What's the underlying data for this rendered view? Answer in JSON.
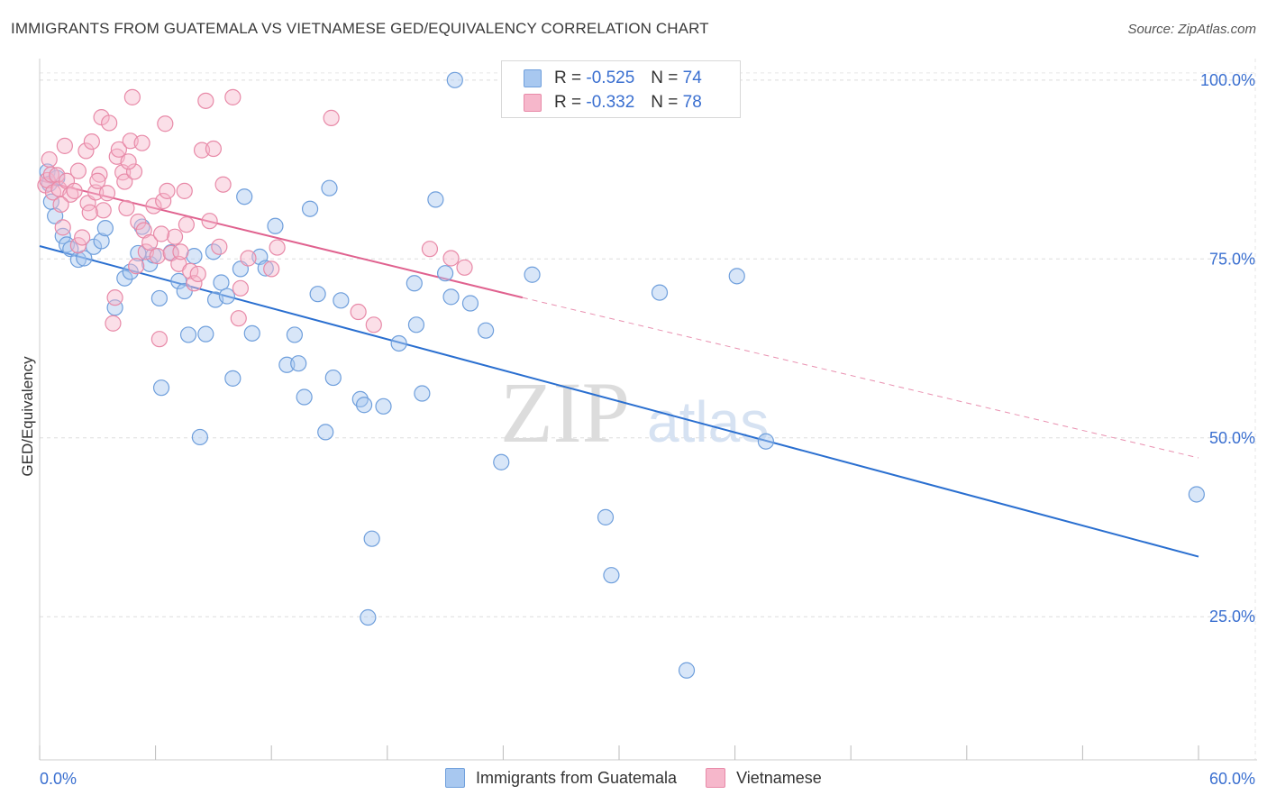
{
  "title": "IMMIGRANTS FROM GUATEMALA VS VIETNAMESE GED/EQUIVALENCY CORRELATION CHART",
  "source": "Source: ZipAtlas.com",
  "watermark": {
    "zip": "ZIP",
    "atlas": "atlas"
  },
  "colors": {
    "blue_fill": "#a8c8f0",
    "blue_stroke": "#6f9fdc",
    "blue_line": "#2a6fd0",
    "pink_fill": "#f6b7cb",
    "pink_stroke": "#e88aa8",
    "pink_line": "#e0628f",
    "tick_label": "#3a6fd0",
    "grid": "#dddddd"
  },
  "legend": {
    "rows": [
      {
        "r_label": "R = ",
        "r_value": "-0.525",
        "n_label": "N = ",
        "n_value": "74",
        "color": "#a8c8f0",
        "border": "#6f9fdc"
      },
      {
        "r_label": "R = ",
        "r_value": "-0.332",
        "n_label": "N = ",
        "n_value": "78",
        "color": "#f6b7cb",
        "border": "#e88aa8"
      }
    ]
  },
  "bottom_legend": [
    {
      "label": "Immigrants from Guatemala",
      "color": "#a8c8f0",
      "border": "#6f9fdc"
    },
    {
      "label": "Vietnamese",
      "color": "#f6b7cb",
      "border": "#e88aa8"
    }
  ],
  "chart_data": {
    "type": "scatter",
    "title": "IMMIGRANTS FROM GUATEMALA VS VIETNAMESE GED/EQUIVALENCY CORRELATION CHART",
    "xlabel": "",
    "ylabel": "GED/Equivalency",
    "xlim": [
      0,
      60
    ],
    "ylim": [
      5,
      103
    ],
    "x_tick_labels": [
      "0.0%",
      "60.0%"
    ],
    "y_ticks": [
      25,
      50,
      75,
      100
    ],
    "y_tick_labels": [
      "25.0%",
      "50.0%",
      "75.0%",
      "100.0%"
    ],
    "grid": true,
    "series": [
      {
        "name": "Immigrants from Guatemala",
        "color": "#a8c8f0",
        "trend": {
          "x": [
            0,
            60
          ],
          "y": [
            76.8,
            33.4
          ],
          "dashed_extension": false
        },
        "points": [
          [
            0.4,
            87.2
          ],
          [
            0.5,
            85.5
          ],
          [
            0.6,
            83.0
          ],
          [
            0.8,
            81.0
          ],
          [
            1.2,
            78.2
          ],
          [
            1.4,
            77.0
          ],
          [
            1.6,
            76.4
          ],
          [
            2.0,
            74.9
          ],
          [
            2.3,
            75.1
          ],
          [
            2.8,
            76.7
          ],
          [
            3.2,
            77.5
          ],
          [
            3.4,
            79.3
          ],
          [
            3.9,
            68.2
          ],
          [
            4.4,
            72.3
          ],
          [
            4.7,
            73.2
          ],
          [
            5.1,
            75.8
          ],
          [
            5.3,
            79.5
          ],
          [
            5.7,
            74.3
          ],
          [
            5.9,
            75.5
          ],
          [
            6.2,
            69.5
          ],
          [
            6.3,
            57.0
          ],
          [
            6.8,
            75.9
          ],
          [
            7.2,
            71.9
          ],
          [
            7.5,
            70.5
          ],
          [
            7.7,
            64.4
          ],
          [
            8.0,
            75.4
          ],
          [
            8.3,
            50.1
          ],
          [
            8.6,
            64.5
          ],
          [
            9.0,
            76.0
          ],
          [
            9.1,
            69.3
          ],
          [
            9.4,
            71.7
          ],
          [
            9.7,
            69.8
          ],
          [
            10.0,
            58.3
          ],
          [
            10.4,
            73.6
          ],
          [
            10.6,
            83.7
          ],
          [
            11.0,
            64.6
          ],
          [
            11.4,
            75.3
          ],
          [
            11.7,
            73.7
          ],
          [
            12.2,
            79.6
          ],
          [
            12.8,
            60.2
          ],
          [
            13.2,
            64.4
          ],
          [
            13.4,
            60.4
          ],
          [
            13.7,
            55.7
          ],
          [
            14.0,
            82.0
          ],
          [
            14.4,
            70.1
          ],
          [
            14.8,
            50.8
          ],
          [
            15.0,
            84.9
          ],
          [
            15.2,
            58.4
          ],
          [
            15.6,
            69.2
          ],
          [
            16.6,
            55.4
          ],
          [
            16.8,
            54.6
          ],
          [
            17.0,
            24.9
          ],
          [
            17.2,
            35.9
          ],
          [
            17.8,
            54.4
          ],
          [
            18.6,
            63.2
          ],
          [
            19.4,
            71.6
          ],
          [
            19.5,
            65.8
          ],
          [
            19.8,
            56.2
          ],
          [
            20.5,
            83.3
          ],
          [
            21.0,
            73.0
          ],
          [
            21.3,
            69.7
          ],
          [
            21.5,
            100.0
          ],
          [
            22.3,
            68.8
          ],
          [
            23.1,
            65.0
          ],
          [
            23.9,
            46.6
          ],
          [
            25.5,
            72.8
          ],
          [
            29.3,
            38.9
          ],
          [
            29.6,
            30.8
          ],
          [
            32.1,
            70.3
          ],
          [
            33.5,
            17.5
          ],
          [
            36.1,
            72.6
          ],
          [
            37.6,
            49.5
          ],
          [
            59.9,
            42.1
          ],
          [
            0.9,
            86.3
          ]
        ]
      },
      {
        "name": "Vietnamese",
        "color": "#f6b7cb",
        "trend": {
          "x": [
            0,
            25.0
          ],
          "y": [
            86.0,
            69.6
          ],
          "dashed_to": {
            "x": 60,
            "y": 47.2
          }
        },
        "points": [
          [
            0.3,
            85.3
          ],
          [
            0.4,
            86.0
          ],
          [
            0.5,
            88.9
          ],
          [
            0.6,
            86.8
          ],
          [
            0.7,
            84.3
          ],
          [
            0.9,
            86.7
          ],
          [
            1.0,
            84.8
          ],
          [
            1.2,
            79.4
          ],
          [
            1.3,
            90.8
          ],
          [
            1.4,
            85.9
          ],
          [
            1.6,
            84.0
          ],
          [
            1.8,
            84.5
          ],
          [
            2.0,
            76.9
          ],
          [
            2.0,
            87.3
          ],
          [
            2.2,
            78.0
          ],
          [
            2.4,
            90.1
          ],
          [
            2.5,
            82.8
          ],
          [
            2.7,
            91.4
          ],
          [
            2.9,
            84.3
          ],
          [
            3.1,
            86.8
          ],
          [
            3.2,
            94.8
          ],
          [
            3.3,
            81.8
          ],
          [
            3.5,
            84.2
          ],
          [
            3.6,
            94.0
          ],
          [
            3.8,
            66.0
          ],
          [
            3.9,
            69.6
          ],
          [
            4.0,
            89.3
          ],
          [
            4.1,
            90.3
          ],
          [
            4.3,
            87.1
          ],
          [
            4.4,
            85.8
          ],
          [
            4.5,
            82.1
          ],
          [
            4.7,
            91.5
          ],
          [
            4.8,
            97.6
          ],
          [
            4.9,
            87.2
          ],
          [
            5.1,
            80.2
          ],
          [
            5.3,
            91.2
          ],
          [
            5.4,
            79.0
          ],
          [
            5.5,
            76.0
          ],
          [
            5.7,
            77.3
          ],
          [
            5.9,
            82.4
          ],
          [
            6.1,
            75.4
          ],
          [
            6.2,
            63.8
          ],
          [
            6.4,
            83.1
          ],
          [
            6.5,
            93.9
          ],
          [
            6.6,
            84.5
          ],
          [
            6.8,
            75.8
          ],
          [
            7.0,
            78.1
          ],
          [
            7.2,
            74.3
          ],
          [
            7.3,
            76.0
          ],
          [
            7.5,
            84.5
          ],
          [
            7.6,
            79.8
          ],
          [
            7.8,
            73.3
          ],
          [
            8.0,
            71.6
          ],
          [
            8.2,
            72.9
          ],
          [
            8.4,
            90.2
          ],
          [
            8.6,
            97.1
          ],
          [
            9.0,
            90.4
          ],
          [
            9.3,
            76.7
          ],
          [
            9.5,
            85.4
          ],
          [
            10.0,
            97.6
          ],
          [
            10.3,
            66.7
          ],
          [
            10.4,
            70.9
          ],
          [
            10.8,
            75.1
          ],
          [
            12.0,
            73.6
          ],
          [
            12.3,
            76.6
          ],
          [
            15.1,
            94.7
          ],
          [
            16.5,
            67.6
          ],
          [
            17.3,
            65.8
          ],
          [
            20.2,
            76.4
          ],
          [
            21.3,
            75.1
          ],
          [
            22.0,
            73.8
          ],
          [
            8.8,
            80.3
          ],
          [
            6.3,
            78.5
          ],
          [
            5.0,
            74.0
          ],
          [
            2.6,
            81.5
          ],
          [
            3.0,
            85.9
          ],
          [
            1.1,
            82.6
          ],
          [
            4.6,
            88.6
          ]
        ]
      }
    ]
  }
}
